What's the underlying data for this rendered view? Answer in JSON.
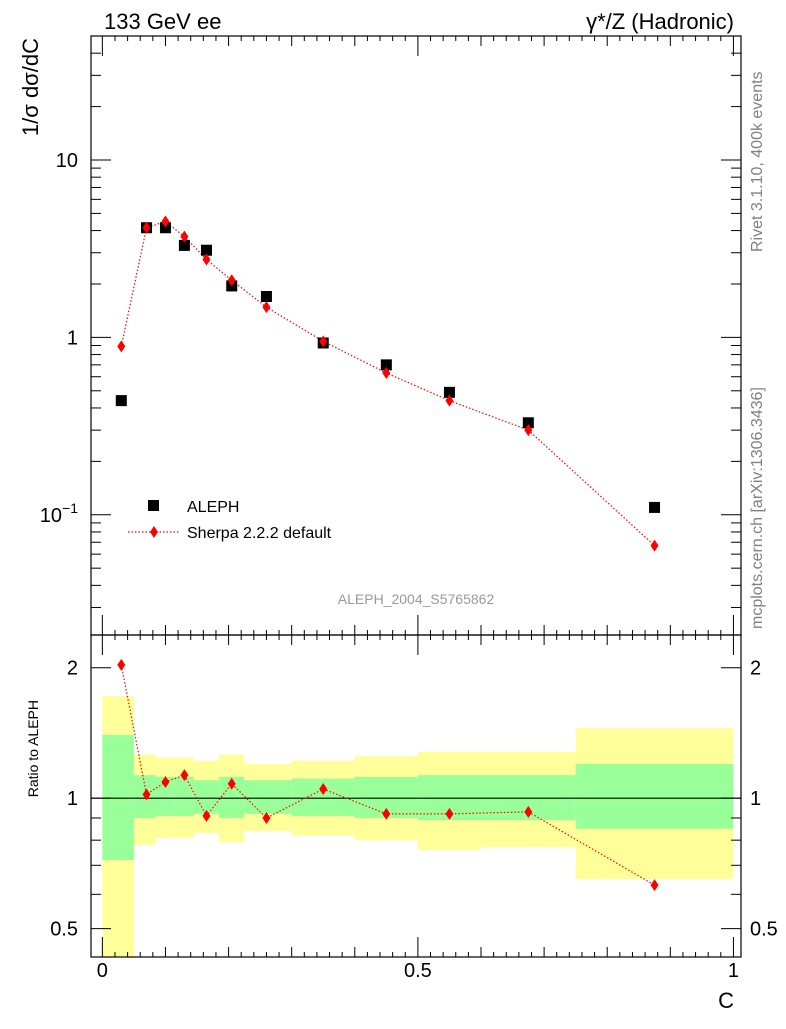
{
  "header": {
    "left": "133 GeV ee",
    "right": "γ*/Z (Hadronic)"
  },
  "side_labels": {
    "rivet": "Rivet 3.1.10,  400k events",
    "mcplots": "mcplots.cern.ch [arXiv:1306.3436]"
  },
  "chart_data": [
    {
      "type": "scatter",
      "ylabel": "1/σ  dσ/dC",
      "yscale": "log",
      "ylim": [
        0.021,
        50
      ],
      "xlim": [
        -0.018,
        1.012
      ],
      "ytick_labels": [
        "10",
        "1",
        "10^-1"
      ],
      "ytick_values": [
        10,
        1,
        0.1
      ],
      "annotation": "ALEPH_2004_S5765862",
      "legend_placement": "lower-left",
      "series": [
        {
          "name": "ALEPH",
          "color": "#000000",
          "marker": "square",
          "x": [
            0.03,
            0.07,
            0.1,
            0.13,
            0.165,
            0.205,
            0.26,
            0.35,
            0.45,
            0.55,
            0.675,
            0.875
          ],
          "y": [
            0.44,
            4.15,
            4.15,
            3.3,
            3.1,
            1.95,
            1.7,
            0.93,
            0.7,
            0.49,
            0.33,
            0.11
          ]
        },
        {
          "name": "Sherpa 2.2.2 default",
          "color": "#ff0000",
          "marker": "diamond",
          "line": "dotted",
          "x": [
            0.03,
            0.07,
            0.1,
            0.13,
            0.165,
            0.205,
            0.26,
            0.35,
            0.45,
            0.55,
            0.675,
            0.875
          ],
          "y": [
            0.89,
            4.15,
            4.5,
            3.7,
            2.75,
            2.1,
            1.48,
            0.95,
            0.63,
            0.44,
            0.3,
            0.067
          ]
        }
      ]
    },
    {
      "type": "scatter",
      "ylabel": "Ratio to ALEPH",
      "xlabel": "C",
      "yscale": "log",
      "ylim": [
        0.43,
        2.38
      ],
      "xlim": [
        -0.018,
        1.012
      ],
      "ytick_labels": [
        "2",
        "1",
        "0.5"
      ],
      "ytick_values": [
        2,
        1,
        0.5
      ],
      "xtick_labels": [
        "0",
        "0.5",
        "1"
      ],
      "xtick_values": [
        0,
        0.5,
        1
      ],
      "reference_line": 1,
      "bands": {
        "green_color": "#99ff99",
        "yellow_color": "#ffff99",
        "bins": [
          {
            "x0": 0.0,
            "x1": 0.05,
            "g_lo": 0.72,
            "g_hi": 1.4,
            "y_lo": 0.4,
            "y_hi": 1.72
          },
          {
            "x0": 0.05,
            "x1": 0.085,
            "g_lo": 0.9,
            "g_hi": 1.13,
            "y_lo": 0.78,
            "y_hi": 1.26
          },
          {
            "x0": 0.085,
            "x1": 0.115,
            "g_lo": 0.91,
            "g_hi": 1.12,
            "y_lo": 0.81,
            "y_hi": 1.24
          },
          {
            "x0": 0.115,
            "x1": 0.145,
            "g_lo": 0.91,
            "g_hi": 1.12,
            "y_lo": 0.81,
            "y_hi": 1.24
          },
          {
            "x0": 0.145,
            "x1": 0.185,
            "g_lo": 0.92,
            "g_hi": 1.1,
            "y_lo": 0.83,
            "y_hi": 1.22
          },
          {
            "x0": 0.185,
            "x1": 0.225,
            "g_lo": 0.9,
            "g_hi": 1.12,
            "y_lo": 0.79,
            "y_hi": 1.26
          },
          {
            "x0": 0.225,
            "x1": 0.3,
            "g_lo": 0.92,
            "g_hi": 1.1,
            "y_lo": 0.84,
            "y_hi": 1.2
          },
          {
            "x0": 0.3,
            "x1": 0.4,
            "g_lo": 0.91,
            "g_hi": 1.11,
            "y_lo": 0.82,
            "y_hi": 1.22
          },
          {
            "x0": 0.4,
            "x1": 0.5,
            "g_lo": 0.9,
            "g_hi": 1.12,
            "y_lo": 0.8,
            "y_hi": 1.25
          },
          {
            "x0": 0.5,
            "x1": 0.6,
            "g_lo": 0.89,
            "g_hi": 1.13,
            "y_lo": 0.76,
            "y_hi": 1.28
          },
          {
            "x0": 0.6,
            "x1": 0.75,
            "g_lo": 0.89,
            "g_hi": 1.13,
            "y_lo": 0.77,
            "y_hi": 1.28
          },
          {
            "x0": 0.75,
            "x1": 1.0,
            "g_lo": 0.85,
            "g_hi": 1.2,
            "y_lo": 0.65,
            "y_hi": 1.45
          }
        ]
      },
      "series": [
        {
          "name": "Sherpa 2.2.2 default",
          "color": "#ff0000",
          "marker": "diamond",
          "line": "dotted",
          "x": [
            0.03,
            0.07,
            0.1,
            0.13,
            0.165,
            0.205,
            0.26,
            0.35,
            0.45,
            0.55,
            0.675,
            0.875
          ],
          "y": [
            2.03,
            1.02,
            1.09,
            1.13,
            0.91,
            1.08,
            0.9,
            1.05,
            0.92,
            0.92,
            0.93,
            0.63
          ]
        }
      ]
    }
  ]
}
